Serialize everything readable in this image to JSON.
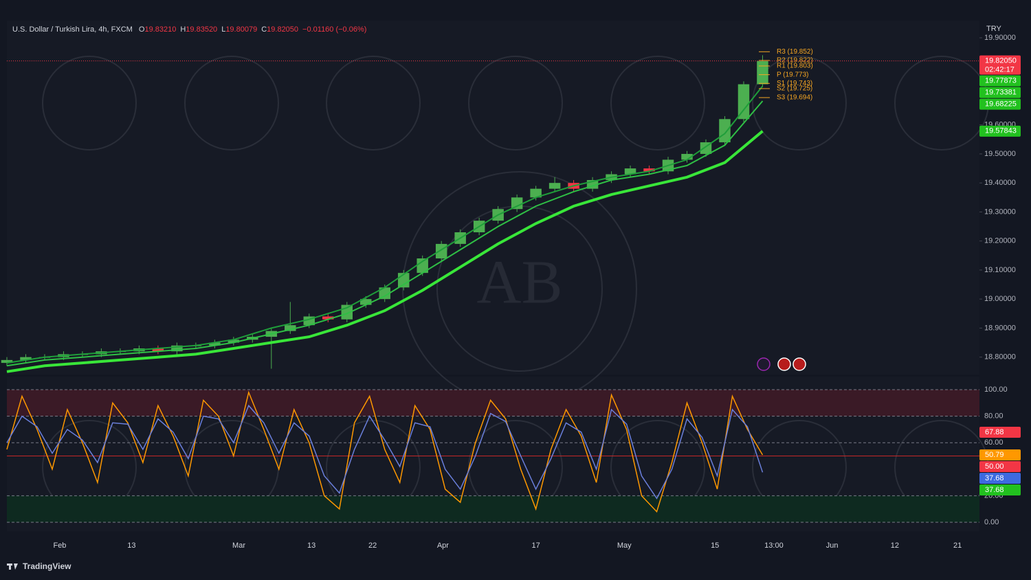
{
  "header": {
    "symbol": "U.S. Dollar / Turkish Lira, 4h, FXCM",
    "ohlc": [
      {
        "key": "O",
        "value": "19.83210"
      },
      {
        "key": "H",
        "value": "19.83520"
      },
      {
        "key": "L",
        "value": "19.80079"
      },
      {
        "key": "C",
        "value": "19.82050"
      }
    ],
    "change": "−0.01160 (−0.06%)"
  },
  "currency": "TRY",
  "watermark": "AB",
  "brand": "TradingView",
  "chart_data": [
    {
      "type": "candlestick",
      "x": [
        0,
        2.5,
        5,
        7.5,
        10,
        12.5,
        15,
        17.5,
        20,
        22.5,
        25,
        27.5,
        30,
        32.5,
        35,
        37.5,
        40,
        42.5,
        45,
        47.5,
        50,
        52.5,
        55,
        57.5,
        60,
        62.5,
        65,
        67.5,
        70,
        72.5,
        75,
        77.5,
        80,
        82.5,
        85,
        87.5,
        90,
        92.5,
        95,
        97.5,
        100
      ],
      "open": [
        18.78,
        18.79,
        18.8,
        18.8,
        18.81,
        18.81,
        18.82,
        18.82,
        18.83,
        18.82,
        18.84,
        18.84,
        18.85,
        18.86,
        18.87,
        18.89,
        18.91,
        18.94,
        18.93,
        18.98,
        19.0,
        19.04,
        19.09,
        19.14,
        19.19,
        19.23,
        19.27,
        19.31,
        19.35,
        19.38,
        19.4,
        19.38,
        19.41,
        19.43,
        19.45,
        19.44,
        19.48,
        19.5,
        19.54,
        19.62,
        19.74
      ],
      "high": [
        18.8,
        18.81,
        18.81,
        18.82,
        18.82,
        18.83,
        18.83,
        18.84,
        18.84,
        18.85,
        18.85,
        18.86,
        18.87,
        18.88,
        18.9,
        18.99,
        18.95,
        18.95,
        18.99,
        19.01,
        19.05,
        19.1,
        19.15,
        19.2,
        19.24,
        19.28,
        19.32,
        19.36,
        19.39,
        19.42,
        19.41,
        19.42,
        19.44,
        19.46,
        19.46,
        19.49,
        19.51,
        19.55,
        19.63,
        19.75,
        19.84
      ],
      "low": [
        18.77,
        18.78,
        18.79,
        18.79,
        18.8,
        18.8,
        18.81,
        18.81,
        18.81,
        18.81,
        18.83,
        18.83,
        18.84,
        18.85,
        18.76,
        18.88,
        18.9,
        18.92,
        18.92,
        18.97,
        18.99,
        19.03,
        19.08,
        19.13,
        19.18,
        19.22,
        19.26,
        19.3,
        19.34,
        19.37,
        19.37,
        19.37,
        19.4,
        19.42,
        19.43,
        19.43,
        19.47,
        19.49,
        19.53,
        19.61,
        19.73
      ],
      "close": [
        18.79,
        18.8,
        18.8,
        18.81,
        18.81,
        18.82,
        18.82,
        18.83,
        18.82,
        18.84,
        18.84,
        18.85,
        18.86,
        18.87,
        18.89,
        18.91,
        18.94,
        18.93,
        18.98,
        19.0,
        19.04,
        19.09,
        19.14,
        19.19,
        19.23,
        19.27,
        19.31,
        19.35,
        19.38,
        19.4,
        19.38,
        19.41,
        19.43,
        19.45,
        19.44,
        19.48,
        19.5,
        19.54,
        19.62,
        19.74,
        19.82
      ],
      "up_color": "#4caf50",
      "down_color": "#f23645",
      "lines": [
        {
          "color": "#39e639",
          "x": [
            0,
            5,
            10,
            15,
            20,
            25,
            30,
            35,
            40,
            45,
            50,
            55,
            60,
            65,
            70,
            75,
            80,
            85,
            90,
            95,
            100
          ],
          "values": [
            18.75,
            18.77,
            18.78,
            18.79,
            18.8,
            18.81,
            18.83,
            18.85,
            18.87,
            18.91,
            18.96,
            19.03,
            19.11,
            19.19,
            19.26,
            19.32,
            19.36,
            19.39,
            19.42,
            19.47,
            19.57843
          ]
        },
        {
          "color": "#2fbf45",
          "x": [
            0,
            5,
            10,
            15,
            20,
            25,
            30,
            35,
            40,
            45,
            50,
            55,
            60,
            65,
            70,
            75,
            80,
            85,
            90,
            95,
            100
          ],
          "values": [
            18.77,
            18.79,
            18.8,
            18.81,
            18.82,
            18.83,
            18.85,
            18.88,
            18.91,
            18.95,
            19.01,
            19.09,
            19.17,
            19.25,
            19.32,
            19.37,
            19.41,
            19.43,
            19.46,
            19.53,
            19.68225
          ]
        },
        {
          "color": "#1f9e3a",
          "x": [
            0,
            5,
            10,
            15,
            20,
            25,
            30,
            35,
            40,
            45,
            50,
            55,
            60,
            65,
            70,
            75,
            80,
            85,
            90,
            95,
            100
          ],
          "values": [
            18.78,
            18.8,
            18.81,
            18.82,
            18.83,
            18.84,
            18.86,
            18.9,
            18.93,
            18.97,
            19.04,
            19.13,
            19.21,
            19.29,
            19.35,
            19.39,
            19.42,
            19.44,
            19.48,
            19.57,
            19.73381
          ]
        }
      ],
      "pivots": [
        {
          "label": "R3 (19.852)",
          "value": 19.852
        },
        {
          "label": "R2 (19.822)",
          "value": 19.822
        },
        {
          "label": "R1 (19.803)",
          "value": 19.803
        },
        {
          "label": "P (19.773)",
          "value": 19.773
        },
        {
          "label": "S1 (19.743)",
          "value": 19.743
        },
        {
          "label": "S2 (19.725)",
          "value": 19.725
        },
        {
          "label": "S3 (19.694)",
          "value": 19.694
        }
      ],
      "pivot_color": "#f5a623",
      "price_labels": [
        {
          "value": 19.8205,
          "label": "19.82050",
          "color": "#f23645"
        },
        {
          "value": 19.77873,
          "label": "19.77873",
          "color": "#22c11f"
        },
        {
          "value": 19.73381,
          "label": "19.73381",
          "color": "#22c11f"
        },
        {
          "value": 19.68225,
          "label": "19.68225",
          "color": "#22c11f"
        },
        {
          "value": 19.57843,
          "label": "19.57843",
          "color": "#22c11f"
        }
      ],
      "countdown": "02:42:17",
      "ylim": [
        18.74,
        19.9
      ],
      "yticks": [
        {
          "value": 18.8,
          "label": "18.80000"
        },
        {
          "value": 18.9,
          "label": "18.90000"
        },
        {
          "value": 19.0,
          "label": "19.00000"
        },
        {
          "value": 19.1,
          "label": "19.10000"
        },
        {
          "value": 19.2,
          "label": "19.20000"
        },
        {
          "value": 19.3,
          "label": "19.30000"
        },
        {
          "value": 19.4,
          "label": "19.40000"
        },
        {
          "value": 19.5,
          "label": "19.50000"
        },
        {
          "value": 19.6,
          "label": "19.60000"
        },
        {
          "value": 19.9,
          "label": "19.90000"
        }
      ],
      "xlim": [
        0,
        128.7
      ],
      "xticks": [
        {
          "value": 7,
          "label": "Feb"
        },
        {
          "value": 16.5,
          "label": "13"
        },
        {
          "value": 30.7,
          "label": "Mar"
        },
        {
          "value": 40.3,
          "label": "13"
        },
        {
          "value": 48.4,
          "label": "22"
        },
        {
          "value": 57.7,
          "label": "Apr"
        },
        {
          "value": 70,
          "label": "17"
        },
        {
          "value": 81.7,
          "label": "May"
        },
        {
          "value": 93.7,
          "label": "15"
        },
        {
          "value": 101.5,
          "label": "13:00"
        },
        {
          "value": 109.2,
          "label": "Jun"
        },
        {
          "value": 117.5,
          "label": "12"
        },
        {
          "value": 125.8,
          "label": "21"
        }
      ]
    },
    {
      "type": "line",
      "x": [
        0,
        2,
        4,
        6,
        8,
        10,
        12,
        14,
        16,
        18,
        20,
        22,
        24,
        26,
        28,
        30,
        32,
        34,
        36,
        38,
        40,
        42,
        44,
        46,
        48,
        50,
        52,
        54,
        56,
        58,
        60,
        62,
        64,
        66,
        68,
        70,
        72,
        74,
        76,
        78,
        80,
        82,
        84,
        86,
        88,
        90,
        92,
        94,
        96,
        98,
        100
      ],
      "series": [
        {
          "color": "#ff9800",
          "values": [
            55,
            95,
            70,
            40,
            85,
            60,
            30,
            90,
            75,
            45,
            88,
            65,
            35,
            92,
            80,
            50,
            98,
            70,
            40,
            85,
            60,
            20,
            10,
            75,
            95,
            55,
            30,
            88,
            70,
            25,
            15,
            60,
            92,
            78,
            40,
            10,
            55,
            85,
            65,
            30,
            96,
            70,
            20,
            8,
            45,
            90,
            60,
            25,
            95,
            70,
            50.79
          ]
        },
        {
          "color": "#6a7fdb",
          "values": [
            60,
            80,
            72,
            52,
            70,
            62,
            45,
            75,
            74,
            55,
            78,
            68,
            48,
            80,
            78,
            60,
            88,
            75,
            52,
            75,
            65,
            35,
            22,
            55,
            80,
            62,
            42,
            75,
            72,
            40,
            25,
            50,
            82,
            76,
            50,
            25,
            48,
            75,
            68,
            40,
            85,
            74,
            35,
            18,
            40,
            78,
            64,
            35,
            85,
            72,
            37.68
          ]
        }
      ],
      "bands": [
        {
          "from": 80,
          "to": 100,
          "color": "#3a1a26"
        },
        {
          "from": 0,
          "to": 20,
          "color": "#0e2a20"
        }
      ],
      "levels": [
        {
          "value": 50,
          "color": "#c62828"
        }
      ],
      "price_labels": [
        {
          "value": 67.88,
          "label": "67.88",
          "color": "#f23645"
        },
        {
          "value": 50.79,
          "label": "50.79",
          "color": "#ff9800"
        },
        {
          "value": 50,
          "label": "50.00",
          "color": "#f23645"
        },
        {
          "value": 37.68,
          "label": "37.68",
          "color": "#3d6ae0"
        },
        {
          "value": 37.68,
          "label": "37.68",
          "color": "#22c11f"
        }
      ],
      "ylim": [
        0,
        100
      ],
      "yticks": [
        {
          "value": 0,
          "label": "0.00"
        },
        {
          "value": 20,
          "label": "20.00"
        },
        {
          "value": 60,
          "label": "60.00"
        },
        {
          "value": 80,
          "label": "80.00"
        },
        {
          "value": 100,
          "label": "100.00"
        }
      ],
      "xlim": [
        0,
        128.7
      ]
    }
  ]
}
